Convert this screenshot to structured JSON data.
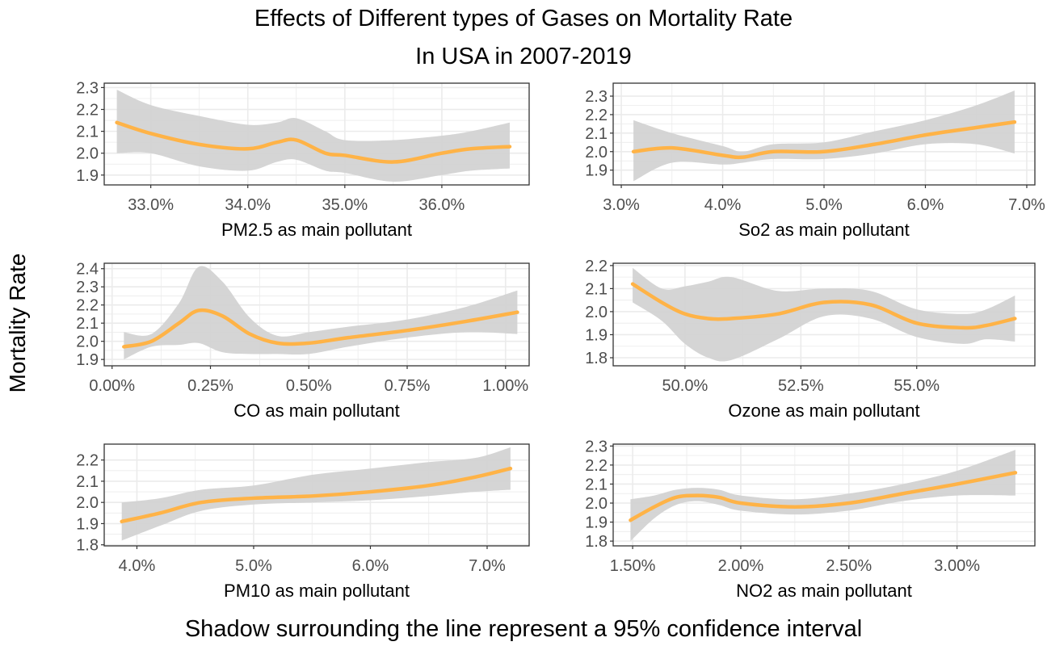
{
  "title": "Effects of Different types of Gases on Mortality Rate",
  "subtitle": "In USA in 2007-2019",
  "ylabel": "Mortality Rate",
  "caption": "Shadow surrounding the line represent a 95% confidence interval",
  "colors": {
    "line": "#ffb347",
    "band": "#d3d3d3",
    "grid": "#ebebeb",
    "border": "#333333"
  },
  "chart_data": [
    {
      "type": "line",
      "xlabel": "PM2.5 as main pollutant",
      "x_ticks": [
        33.0,
        34.0,
        35.0,
        36.0
      ],
      "x_tick_labels": [
        "33.0%",
        "34.0%",
        "35.0%",
        "36.0%"
      ],
      "y_ticks": [
        1.9,
        2.0,
        2.1,
        2.2,
        2.3
      ],
      "y_tick_labels": [
        "1.9",
        "2.0",
        "2.1",
        "2.2",
        "2.3"
      ],
      "xlim": [
        32.52,
        36.9
      ],
      "ylim": [
        1.855,
        2.32
      ],
      "series": [
        {
          "x": [
            32.65,
            33.0,
            33.5,
            34.0,
            34.3,
            34.5,
            34.8,
            35.0,
            35.5,
            36.0,
            36.3,
            36.7
          ],
          "y": [
            2.14,
            2.09,
            2.04,
            2.02,
            2.05,
            2.06,
            2.0,
            1.99,
            1.96,
            2.0,
            2.02,
            2.03
          ],
          "lower": [
            2.0,
            2.0,
            1.94,
            1.92,
            1.96,
            1.97,
            1.92,
            1.91,
            1.87,
            1.9,
            1.92,
            1.93
          ],
          "upper": [
            2.29,
            2.22,
            2.17,
            2.13,
            2.14,
            2.16,
            2.1,
            2.06,
            2.06,
            2.08,
            2.1,
            2.14
          ]
        }
      ]
    },
    {
      "type": "line",
      "xlabel": "So2 as main pollutant",
      "x_ticks": [
        3.0,
        4.0,
        5.0,
        6.0,
        7.0
      ],
      "x_tick_labels": [
        "3.0%",
        "4.0%",
        "5.0%",
        "6.0%",
        "7.0%"
      ],
      "y_ticks": [
        1.9,
        2.0,
        2.1,
        2.2,
        2.3
      ],
      "y_tick_labels": [
        "1.9",
        "2.0",
        "2.1",
        "2.2",
        "2.3"
      ],
      "xlim": [
        2.92,
        7.08
      ],
      "ylim": [
        1.82,
        2.37
      ],
      "series": [
        {
          "x": [
            3.12,
            3.5,
            4.0,
            4.2,
            4.5,
            5.0,
            5.5,
            6.0,
            6.5,
            6.88
          ],
          "y": [
            2.0,
            2.02,
            1.98,
            1.97,
            2.0,
            2.0,
            2.04,
            2.09,
            2.13,
            2.16
          ],
          "lower": [
            1.84,
            1.94,
            1.93,
            1.94,
            1.96,
            1.96,
            1.99,
            2.04,
            2.04,
            1.99
          ],
          "upper": [
            2.17,
            2.1,
            2.03,
            2.0,
            2.04,
            2.05,
            2.11,
            2.17,
            2.25,
            2.33
          ]
        }
      ]
    },
    {
      "type": "line",
      "xlabel": "CO as main pollutant",
      "x_ticks": [
        0.0,
        0.25,
        0.5,
        0.75,
        1.0
      ],
      "x_tick_labels": [
        "0.00%",
        "0.25%",
        "0.50%",
        "0.75%",
        "1.00%"
      ],
      "y_ticks": [
        1.9,
        2.0,
        2.1,
        2.2,
        2.3,
        2.4
      ],
      "y_tick_labels": [
        "1.9",
        "2.0",
        "2.1",
        "2.2",
        "2.3",
        "2.4"
      ],
      "xlim": [
        -0.02,
        1.06
      ],
      "ylim": [
        1.865,
        2.43
      ],
      "series": [
        {
          "x": [
            0.03,
            0.1,
            0.17,
            0.22,
            0.28,
            0.35,
            0.42,
            0.5,
            0.6,
            0.75,
            0.9,
            1.03
          ],
          "y": [
            1.97,
            2.0,
            2.1,
            2.17,
            2.14,
            2.04,
            1.99,
            1.99,
            2.02,
            2.06,
            2.11,
            2.16
          ],
          "lower": [
            1.9,
            1.97,
            1.98,
            1.99,
            1.94,
            1.93,
            1.93,
            1.93,
            1.97,
            2.02,
            2.05,
            2.04
          ],
          "upper": [
            2.05,
            2.04,
            2.21,
            2.41,
            2.33,
            2.13,
            2.03,
            2.05,
            2.08,
            2.12,
            2.19,
            2.28
          ]
        }
      ]
    },
    {
      "type": "line",
      "xlabel": "Ozone as main pollutant",
      "x_ticks": [
        50.0,
        52.5,
        55.0
      ],
      "x_tick_labels": [
        "50.0%",
        "52.5%",
        "55.0%"
      ],
      "y_ticks": [
        1.8,
        1.9,
        2.0,
        2.1,
        2.2
      ],
      "y_tick_labels": [
        "1.8",
        "1.9",
        "2.0",
        "2.1",
        "2.2"
      ],
      "xlim": [
        48.45,
        57.55
      ],
      "ylim": [
        1.765,
        2.21
      ],
      "series": [
        {
          "x": [
            48.87,
            49.5,
            50.0,
            50.5,
            51.0,
            52.0,
            53.0,
            54.0,
            55.0,
            56.0,
            56.5,
            57.12
          ],
          "y": [
            2.12,
            2.04,
            1.99,
            1.97,
            1.97,
            1.99,
            2.04,
            2.03,
            1.95,
            1.93,
            1.94,
            1.97
          ],
          "lower": [
            2.04,
            1.96,
            1.86,
            1.8,
            1.79,
            1.88,
            1.98,
            1.97,
            1.89,
            1.86,
            1.88,
            1.87
          ],
          "upper": [
            2.19,
            2.1,
            2.11,
            2.13,
            2.15,
            2.09,
            2.1,
            2.09,
            2.01,
            1.99,
            2.01,
            2.07
          ]
        }
      ]
    },
    {
      "type": "line",
      "xlabel": "PM10 as main pollutant",
      "x_ticks": [
        4.0,
        5.0,
        6.0,
        7.0
      ],
      "x_tick_labels": [
        "4.0%",
        "5.0%",
        "6.0%",
        "7.0%"
      ],
      "y_ticks": [
        1.8,
        1.9,
        2.0,
        2.1,
        2.2
      ],
      "y_tick_labels": [
        "1.8",
        "1.9",
        "2.0",
        "2.1",
        "2.2"
      ],
      "xlim": [
        3.72,
        7.36
      ],
      "ylim": [
        1.795,
        2.275
      ],
      "series": [
        {
          "x": [
            3.87,
            4.2,
            4.55,
            5.0,
            5.5,
            6.0,
            6.5,
            6.9,
            7.2
          ],
          "y": [
            1.91,
            1.95,
            2.0,
            2.02,
            2.03,
            2.05,
            2.08,
            2.12,
            2.16
          ],
          "lower": [
            1.82,
            1.89,
            1.96,
            1.99,
            2.0,
            2.01,
            2.03,
            2.05,
            2.06
          ],
          "upper": [
            2.0,
            2.02,
            2.06,
            2.08,
            2.13,
            2.16,
            2.19,
            2.21,
            2.26
          ]
        }
      ]
    },
    {
      "type": "line",
      "xlabel": "NO2 as main pollutant",
      "x_ticks": [
        1.5,
        2.0,
        2.5,
        3.0
      ],
      "x_tick_labels": [
        "1.50%",
        "2.00%",
        "2.50%",
        "3.00%"
      ],
      "y_ticks": [
        1.8,
        1.9,
        2.0,
        2.1,
        2.2,
        2.3
      ],
      "y_tick_labels": [
        "1.8",
        "1.9",
        "2.0",
        "2.1",
        "2.2",
        "2.3"
      ],
      "xlim": [
        1.41,
        3.36
      ],
      "ylim": [
        1.775,
        2.31
      ],
      "series": [
        {
          "x": [
            1.49,
            1.6,
            1.7,
            1.8,
            1.9,
            2.0,
            2.25,
            2.5,
            2.75,
            3.0,
            3.27
          ],
          "y": [
            1.91,
            1.98,
            2.03,
            2.04,
            2.03,
            2.0,
            1.98,
            2.0,
            2.05,
            2.1,
            2.16
          ],
          "lower": [
            1.8,
            1.92,
            1.99,
            2.01,
            1.99,
            1.96,
            1.94,
            1.96,
            2.01,
            2.04,
            2.04
          ],
          "upper": [
            2.02,
            2.04,
            2.07,
            2.08,
            2.07,
            2.04,
            2.02,
            2.05,
            2.1,
            2.17,
            2.28
          ]
        }
      ]
    }
  ]
}
